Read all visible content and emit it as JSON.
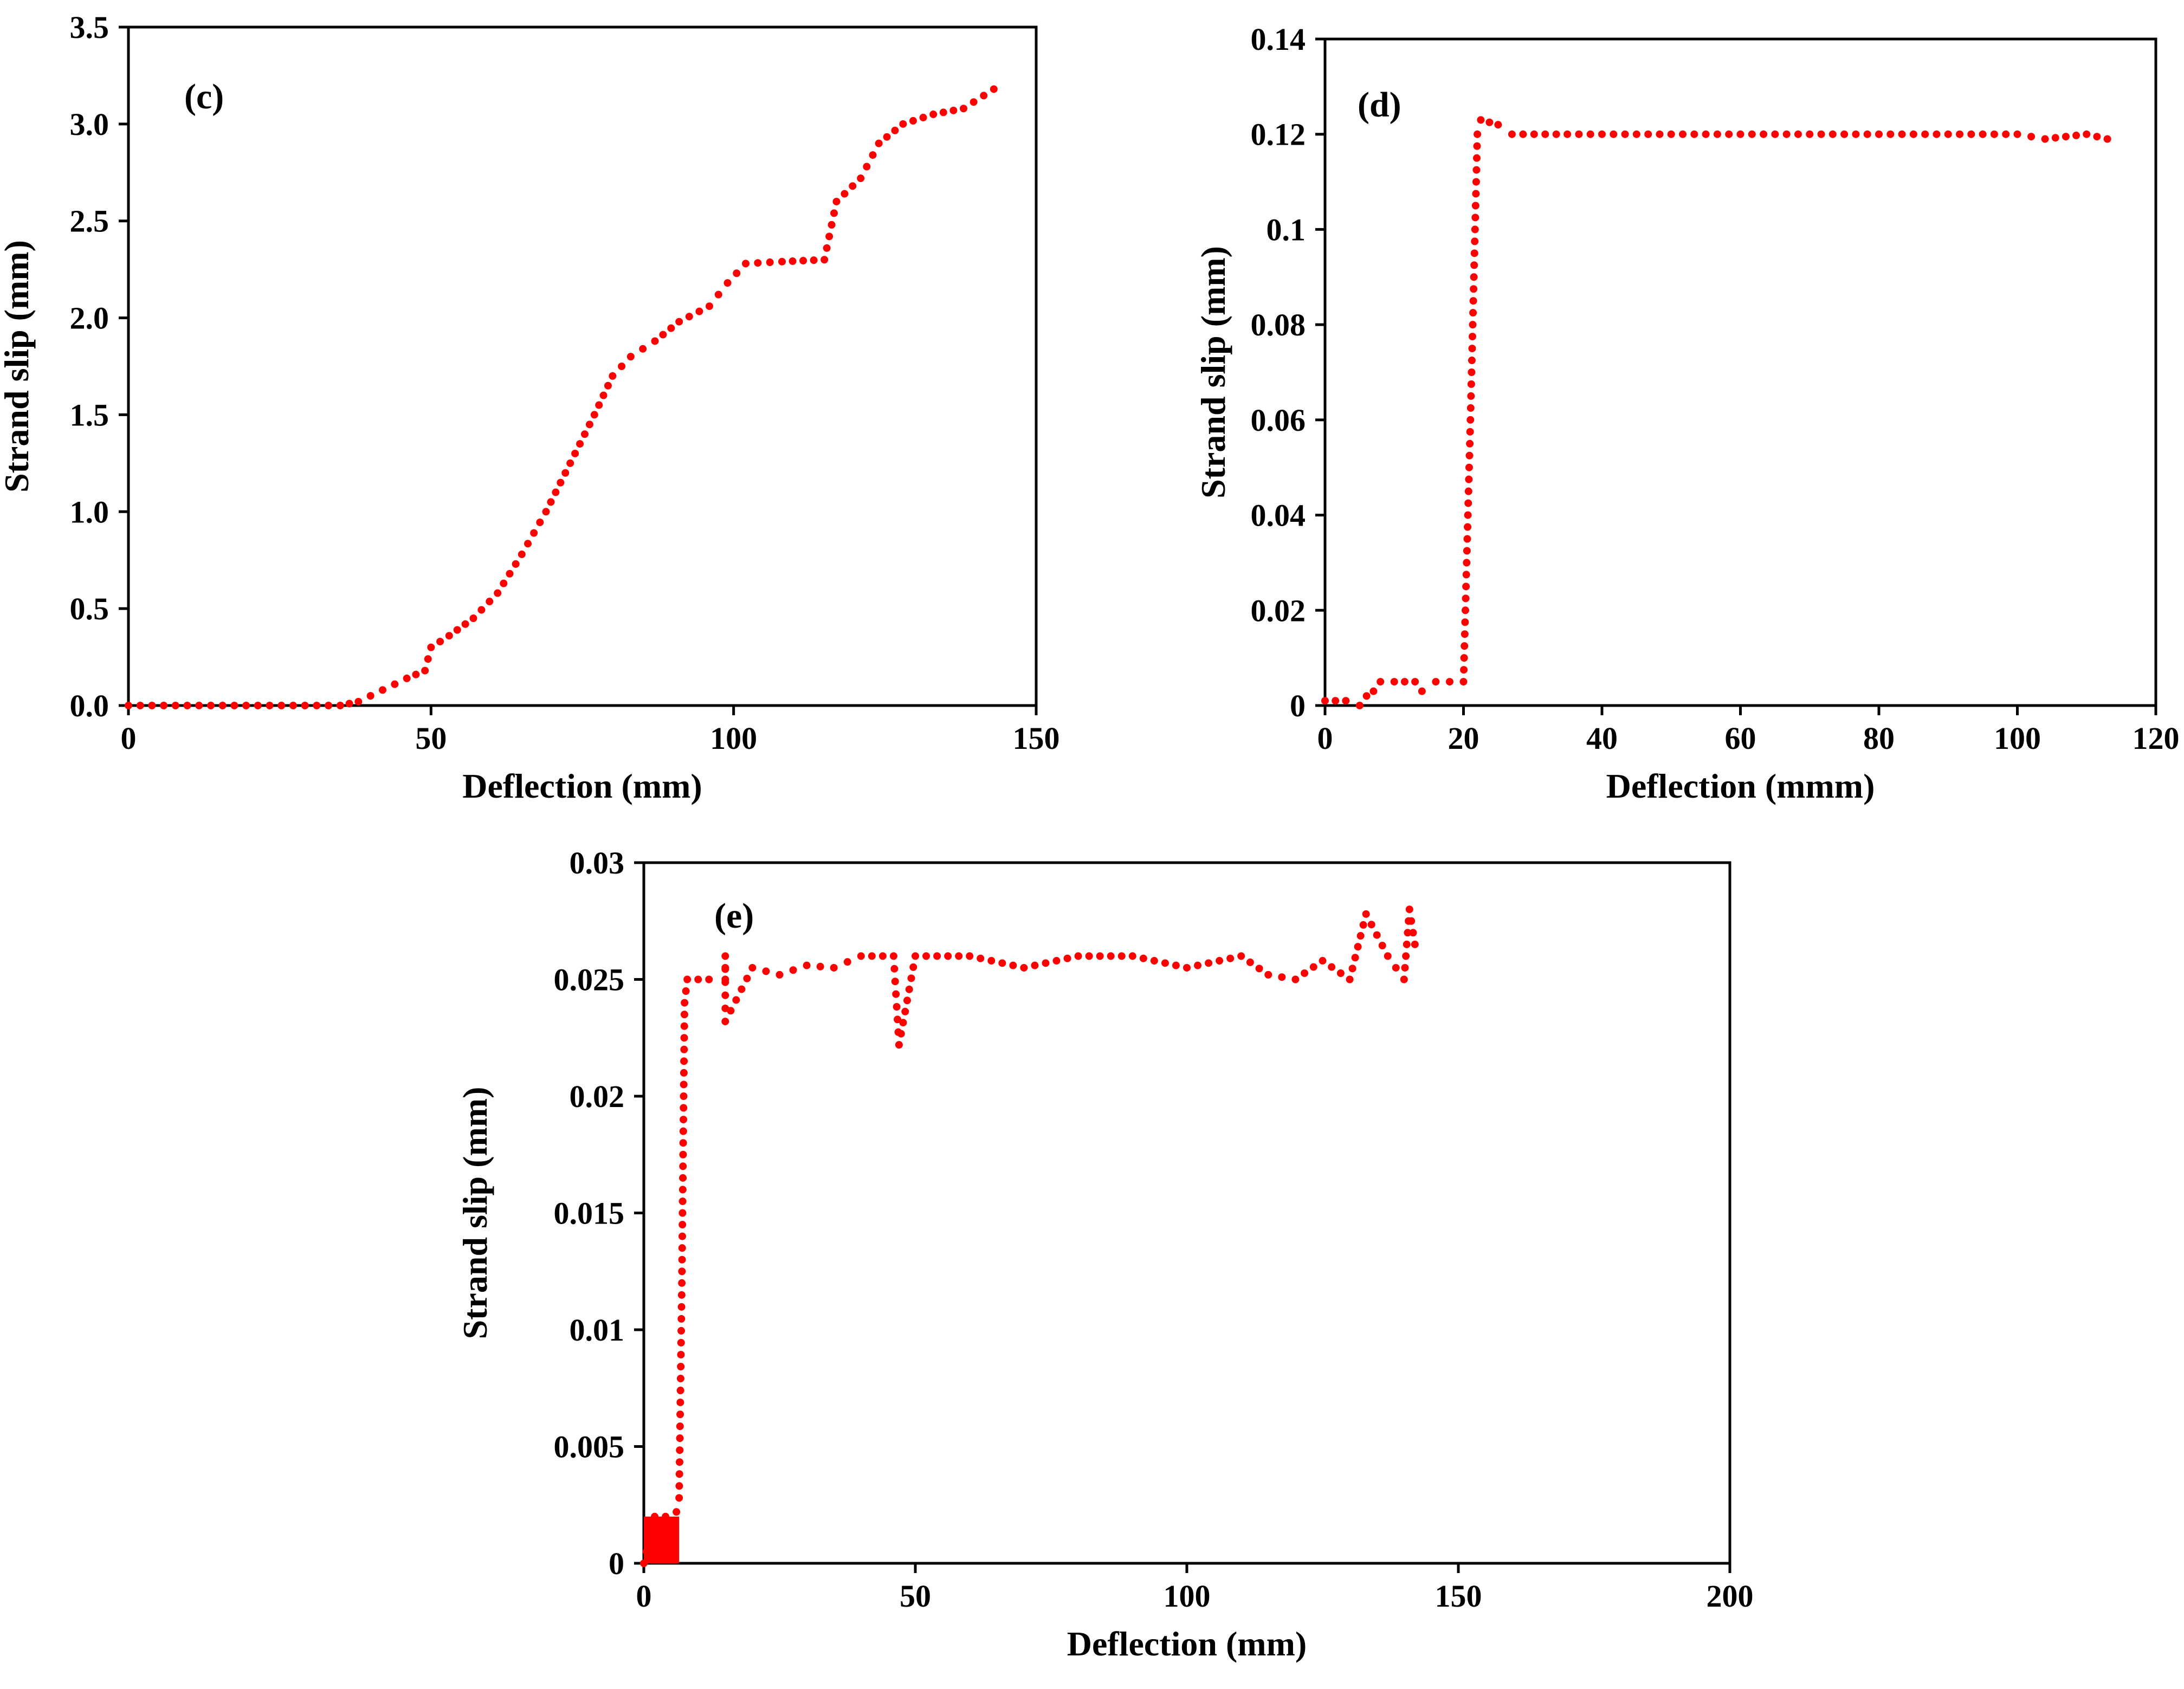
{
  "colors": {
    "series": "#ff0000",
    "axis": "#000000",
    "background": "#ffffff"
  },
  "chart_data": [
    {
      "type": "scatter",
      "panel": "(c)",
      "xlabel": "Deflection (mm)",
      "ylabel": "Strand slip (mm)",
      "xlim": [
        0,
        150
      ],
      "ylim": [
        0,
        3.5
      ],
      "xticks": [
        "0",
        "50",
        "100",
        "150"
      ],
      "yticks": [
        "0.0",
        "0.5",
        "1.0",
        "1.5",
        "2.0",
        "2.5",
        "3.0",
        "3.5"
      ],
      "grid": false,
      "series": [
        {
          "name": "Strand slip",
          "points": [
            [
              0,
              0
            ],
            [
              35,
              0
            ],
            [
              38,
              0.02
            ],
            [
              42,
              0.08
            ],
            [
              46,
              0.14
            ],
            [
              49,
              0.18
            ],
            [
              50,
              0.3
            ],
            [
              53,
              0.36
            ],
            [
              57,
              0.45
            ],
            [
              61,
              0.58
            ],
            [
              65,
              0.78
            ],
            [
              69,
              1.0
            ],
            [
              73,
              1.25
            ],
            [
              77,
              1.5
            ],
            [
              80,
              1.7
            ],
            [
              83,
              1.8
            ],
            [
              87,
              1.88
            ],
            [
              91,
              1.98
            ],
            [
              96,
              2.06
            ],
            [
              99,
              2.18
            ],
            [
              102,
              2.28
            ],
            [
              108,
              2.29
            ],
            [
              115,
              2.3
            ],
            [
              117,
              2.6
            ],
            [
              121,
              2.72
            ],
            [
              124,
              2.9
            ],
            [
              128,
              3.0
            ],
            [
              133,
              3.05
            ],
            [
              138,
              3.08
            ],
            [
              143,
              3.18
            ]
          ]
        }
      ]
    },
    {
      "type": "scatter",
      "panel": "(d)",
      "xlabel": "Deflection (mmm)",
      "ylabel": "Strand slip (mm)",
      "xlim": [
        0,
        120
      ],
      "ylim": [
        0,
        0.14
      ],
      "xticks": [
        "0",
        "20",
        "40",
        "60",
        "80",
        "100",
        "120"
      ],
      "yticks": [
        "0",
        "0.02",
        "0.04",
        "0.06",
        "0.08",
        "0.1",
        "0.12",
        "0.14"
      ],
      "grid": false,
      "series": [
        {
          "name": "Strand slip",
          "points": [
            [
              0,
              0.001
            ],
            [
              3,
              0.001
            ],
            [
              5,
              0.0
            ],
            [
              6,
              0.002
            ],
            [
              7,
              0.003
            ],
            [
              8,
              0.005
            ],
            [
              10,
              0.005
            ],
            [
              13,
              0.005
            ],
            [
              14,
              0.003
            ],
            [
              16,
              0.005
            ],
            [
              20,
              0.005
            ],
            [
              21,
              0.06
            ],
            [
              22,
              0.12
            ],
            [
              22.5,
              0.123
            ],
            [
              25,
              0.122
            ],
            [
              27,
              0.12
            ],
            [
              35,
              0.12
            ],
            [
              50,
              0.12
            ],
            [
              70,
              0.12
            ],
            [
              90,
              0.12
            ],
            [
              100,
              0.12
            ],
            [
              104,
              0.119
            ],
            [
              110,
              0.12
            ],
            [
              113,
              0.119
            ]
          ]
        }
      ]
    },
    {
      "type": "scatter",
      "panel": "(e)",
      "xlabel": "Deflection (mm)",
      "ylabel": "Strand slip (mm)",
      "xlim": [
        0,
        200
      ],
      "ylim": [
        0,
        0.03
      ],
      "xticks": [
        "0",
        "50",
        "100",
        "150",
        "200"
      ],
      "yticks": [
        "0",
        "0.005",
        "0.01",
        "0.015",
        "0.02",
        "0.025",
        "0.03"
      ],
      "grid": false,
      "series": [
        {
          "name": "Strand slip",
          "points": [
            [
              0,
              0.0
            ],
            [
              2,
              0.002
            ],
            [
              4,
              0.002
            ],
            [
              6,
              0.0022
            ],
            [
              6.5,
              0.0028
            ],
            [
              7,
              0.012
            ],
            [
              7.5,
              0.024
            ],
            [
              8,
              0.025
            ],
            [
              12,
              0.025
            ],
            [
              15,
              0.025
            ],
            [
              15,
              0.026
            ],
            [
              15,
              0.0232
            ],
            [
              20,
              0.0255
            ],
            [
              25,
              0.0252
            ],
            [
              30,
              0.0256
            ],
            [
              35,
              0.0255
            ],
            [
              40,
              0.026
            ],
            [
              46,
              0.026
            ],
            [
              47,
              0.0222
            ],
            [
              50,
              0.026
            ],
            [
              60,
              0.026
            ],
            [
              70,
              0.0255
            ],
            [
              80,
              0.026
            ],
            [
              90,
              0.026
            ],
            [
              100,
              0.0255
            ],
            [
              110,
              0.026
            ],
            [
              115,
              0.0252
            ],
            [
              120,
              0.025
            ],
            [
              125,
              0.0258
            ],
            [
              130,
              0.025
            ],
            [
              133,
              0.0278
            ],
            [
              137,
              0.026
            ],
            [
              140,
              0.025
            ],
            [
              141,
              0.028
            ],
            [
              142,
              0.0265
            ]
          ]
        }
      ]
    }
  ]
}
